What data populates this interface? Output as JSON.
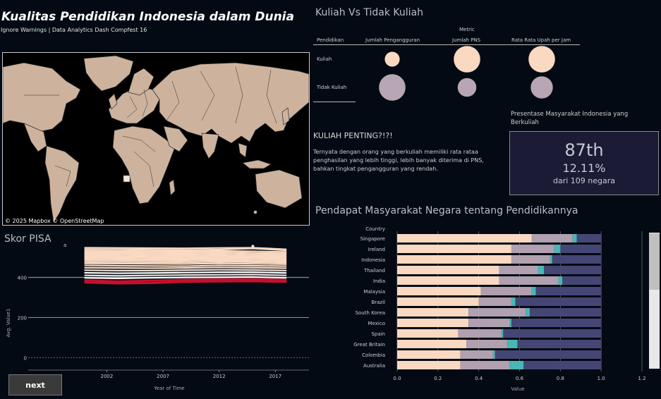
{
  "header": {
    "title": "Kualitas Pendidikan Indonesia dalam Dunia",
    "subtitle": "Ignore Warnings | Data Analytics Dash Compfest 16"
  },
  "map": {
    "attribution": "© 2025 Mapbox © OpenStreetMap",
    "land_color": "#cdb39e",
    "water_color": "#000000"
  },
  "comparison": {
    "title": "Kuliah Vs Tidak Kuliah",
    "metric_header": "Metric",
    "row_header": "Pendidikan",
    "columns": [
      "Jumlah Pengangguran",
      "Jumlah PNS",
      "Rata Rata Upah per Jam"
    ],
    "rows": [
      {
        "label": "Kuliah",
        "color": "#f9d9c1",
        "sizes": [
          0.32,
          1.0,
          1.0
        ]
      },
      {
        "label": "Tidak Kuliah",
        "color": "#b8a6b5",
        "sizes": [
          1.0,
          0.5,
          0.7
        ]
      }
    ]
  },
  "insight": {
    "heading": "KULIAH PENTING?!?!",
    "text": "Ternyata dengan orang yang berkuliah memiliki rata rataa penghasilan yang lebih tinggi, lebih banyak diterima di PNS, bahkan tingkat pengangguran yang rendah."
  },
  "kpi": {
    "label": "Presentase Masyarakat Indonesia yang Berkuliah",
    "rank": "87th",
    "percent": "12.11%",
    "of_text": "dari 109 negara"
  },
  "pisa": {
    "title": "Skor PISA",
    "top_label": "a",
    "ylabel": "Avg. Value1",
    "xlabel": "Year of Time"
  },
  "opinion": {
    "title": "Pendapat Masyarakat Negara tentang Pendidikannya",
    "row_header": "Country",
    "xlabel": "Value"
  },
  "buttons": {
    "next_label": "next"
  },
  "chart_data": [
    {
      "type": "line",
      "title": "Skor PISA",
      "xlabel": "Year of Time",
      "ylabel": "Avg. Value1",
      "x": [
        2000,
        2003,
        2006,
        2009,
        2012,
        2015,
        2018
      ],
      "xticks": [
        2002,
        2007,
        2012,
        2017
      ],
      "yticks": [
        0,
        200,
        400
      ],
      "ylim": [
        -20,
        560
      ],
      "xlim": [
        1995,
        2020
      ],
      "highlight_color": "#c8102e",
      "series": [
        {
          "values": [
            548,
            547,
            546,
            545,
            547,
            548,
            540
          ]
        },
        {
          "values": [
            540,
            540,
            538,
            537,
            539,
            544,
            535
          ]
        },
        {
          "values": [
            533,
            532,
            531,
            530,
            532,
            530,
            527
          ]
        },
        {
          "values": [
            526,
            525,
            524,
            523,
            525,
            522,
            520
          ]
        },
        {
          "values": [
            520,
            519,
            517,
            516,
            518,
            515,
            513
          ]
        },
        {
          "values": [
            513,
            512,
            510,
            509,
            511,
            508,
            507
          ]
        },
        {
          "values": [
            506,
            505,
            503,
            503,
            505,
            502,
            501
          ]
        },
        {
          "values": [
            500,
            499,
            497,
            496,
            498,
            496,
            494
          ]
        },
        {
          "values": [
            493,
            492,
            490,
            490,
            492,
            489,
            488
          ]
        },
        {
          "values": [
            486,
            485,
            484,
            483,
            485,
            482,
            481
          ]
        },
        {
          "values": [
            478,
            477,
            476,
            475,
            478,
            476,
            474
          ]
        },
        {
          "values": [
            470,
            469,
            468,
            467,
            470,
            468,
            466
          ]
        },
        {
          "values": [
            460,
            458,
            457,
            456,
            460,
            458,
            456
          ]
        },
        {
          "values": [
            448,
            447,
            446,
            447,
            450,
            448,
            446
          ]
        },
        {
          "values": [
            436,
            434,
            434,
            436,
            438,
            437,
            434
          ]
        },
        {
          "values": [
            423,
            421,
            422,
            424,
            426,
            426,
            422
          ]
        },
        {
          "values": [
            410,
            408,
            410,
            412,
            413,
            414,
            410
          ]
        },
        {
          "values": [
            398,
            395,
            398,
            400,
            401,
            402,
            398
          ]
        },
        {
          "values": [
            385,
            380,
            384,
            388,
            390,
            391,
            388
          ]
        },
        {
          "values": [
            375,
            370,
            372,
            378,
            380,
            381,
            378
          ]
        }
      ]
    },
    {
      "type": "bar",
      "title": "Pendapat Masyarakat Negara tentang Pendidikannya",
      "xlabel": "Value",
      "xlim": [
        0,
        1.2
      ],
      "xticks": [
        0.0,
        0.2,
        0.4,
        0.6,
        0.8,
        1.0,
        1.2
      ],
      "categories": [
        "Singapore",
        "Ireland",
        "Indonesia",
        "Thailand",
        "India",
        "Malaysia",
        "Brazil",
        "South Korea",
        "Mexico",
        "Spain",
        "Great Britain",
        "Colombia",
        "Australia"
      ],
      "series": [
        {
          "color": "#f9d9c1",
          "values": [
            0.66,
            0.56,
            0.56,
            0.5,
            0.5,
            0.41,
            0.4,
            0.35,
            0.35,
            0.3,
            0.34,
            0.31,
            0.31
          ]
        },
        {
          "color": "#b0a0b0",
          "values": [
            0.2,
            0.21,
            0.19,
            0.19,
            0.29,
            0.25,
            0.16,
            0.28,
            0.2,
            0.21,
            0.2,
            0.16,
            0.24
          ]
        },
        {
          "color": "#49b7b3",
          "values": [
            0.02,
            0.03,
            0.01,
            0.03,
            0.02,
            0.02,
            0.02,
            0.02,
            0.01,
            0.01,
            0.05,
            0.01,
            0.07
          ]
        },
        {
          "color": "#444775",
          "values": [
            0.12,
            0.2,
            0.24,
            0.28,
            0.19,
            0.32,
            0.42,
            0.35,
            0.44,
            0.48,
            0.41,
            0.52,
            0.38
          ]
        }
      ]
    }
  ]
}
